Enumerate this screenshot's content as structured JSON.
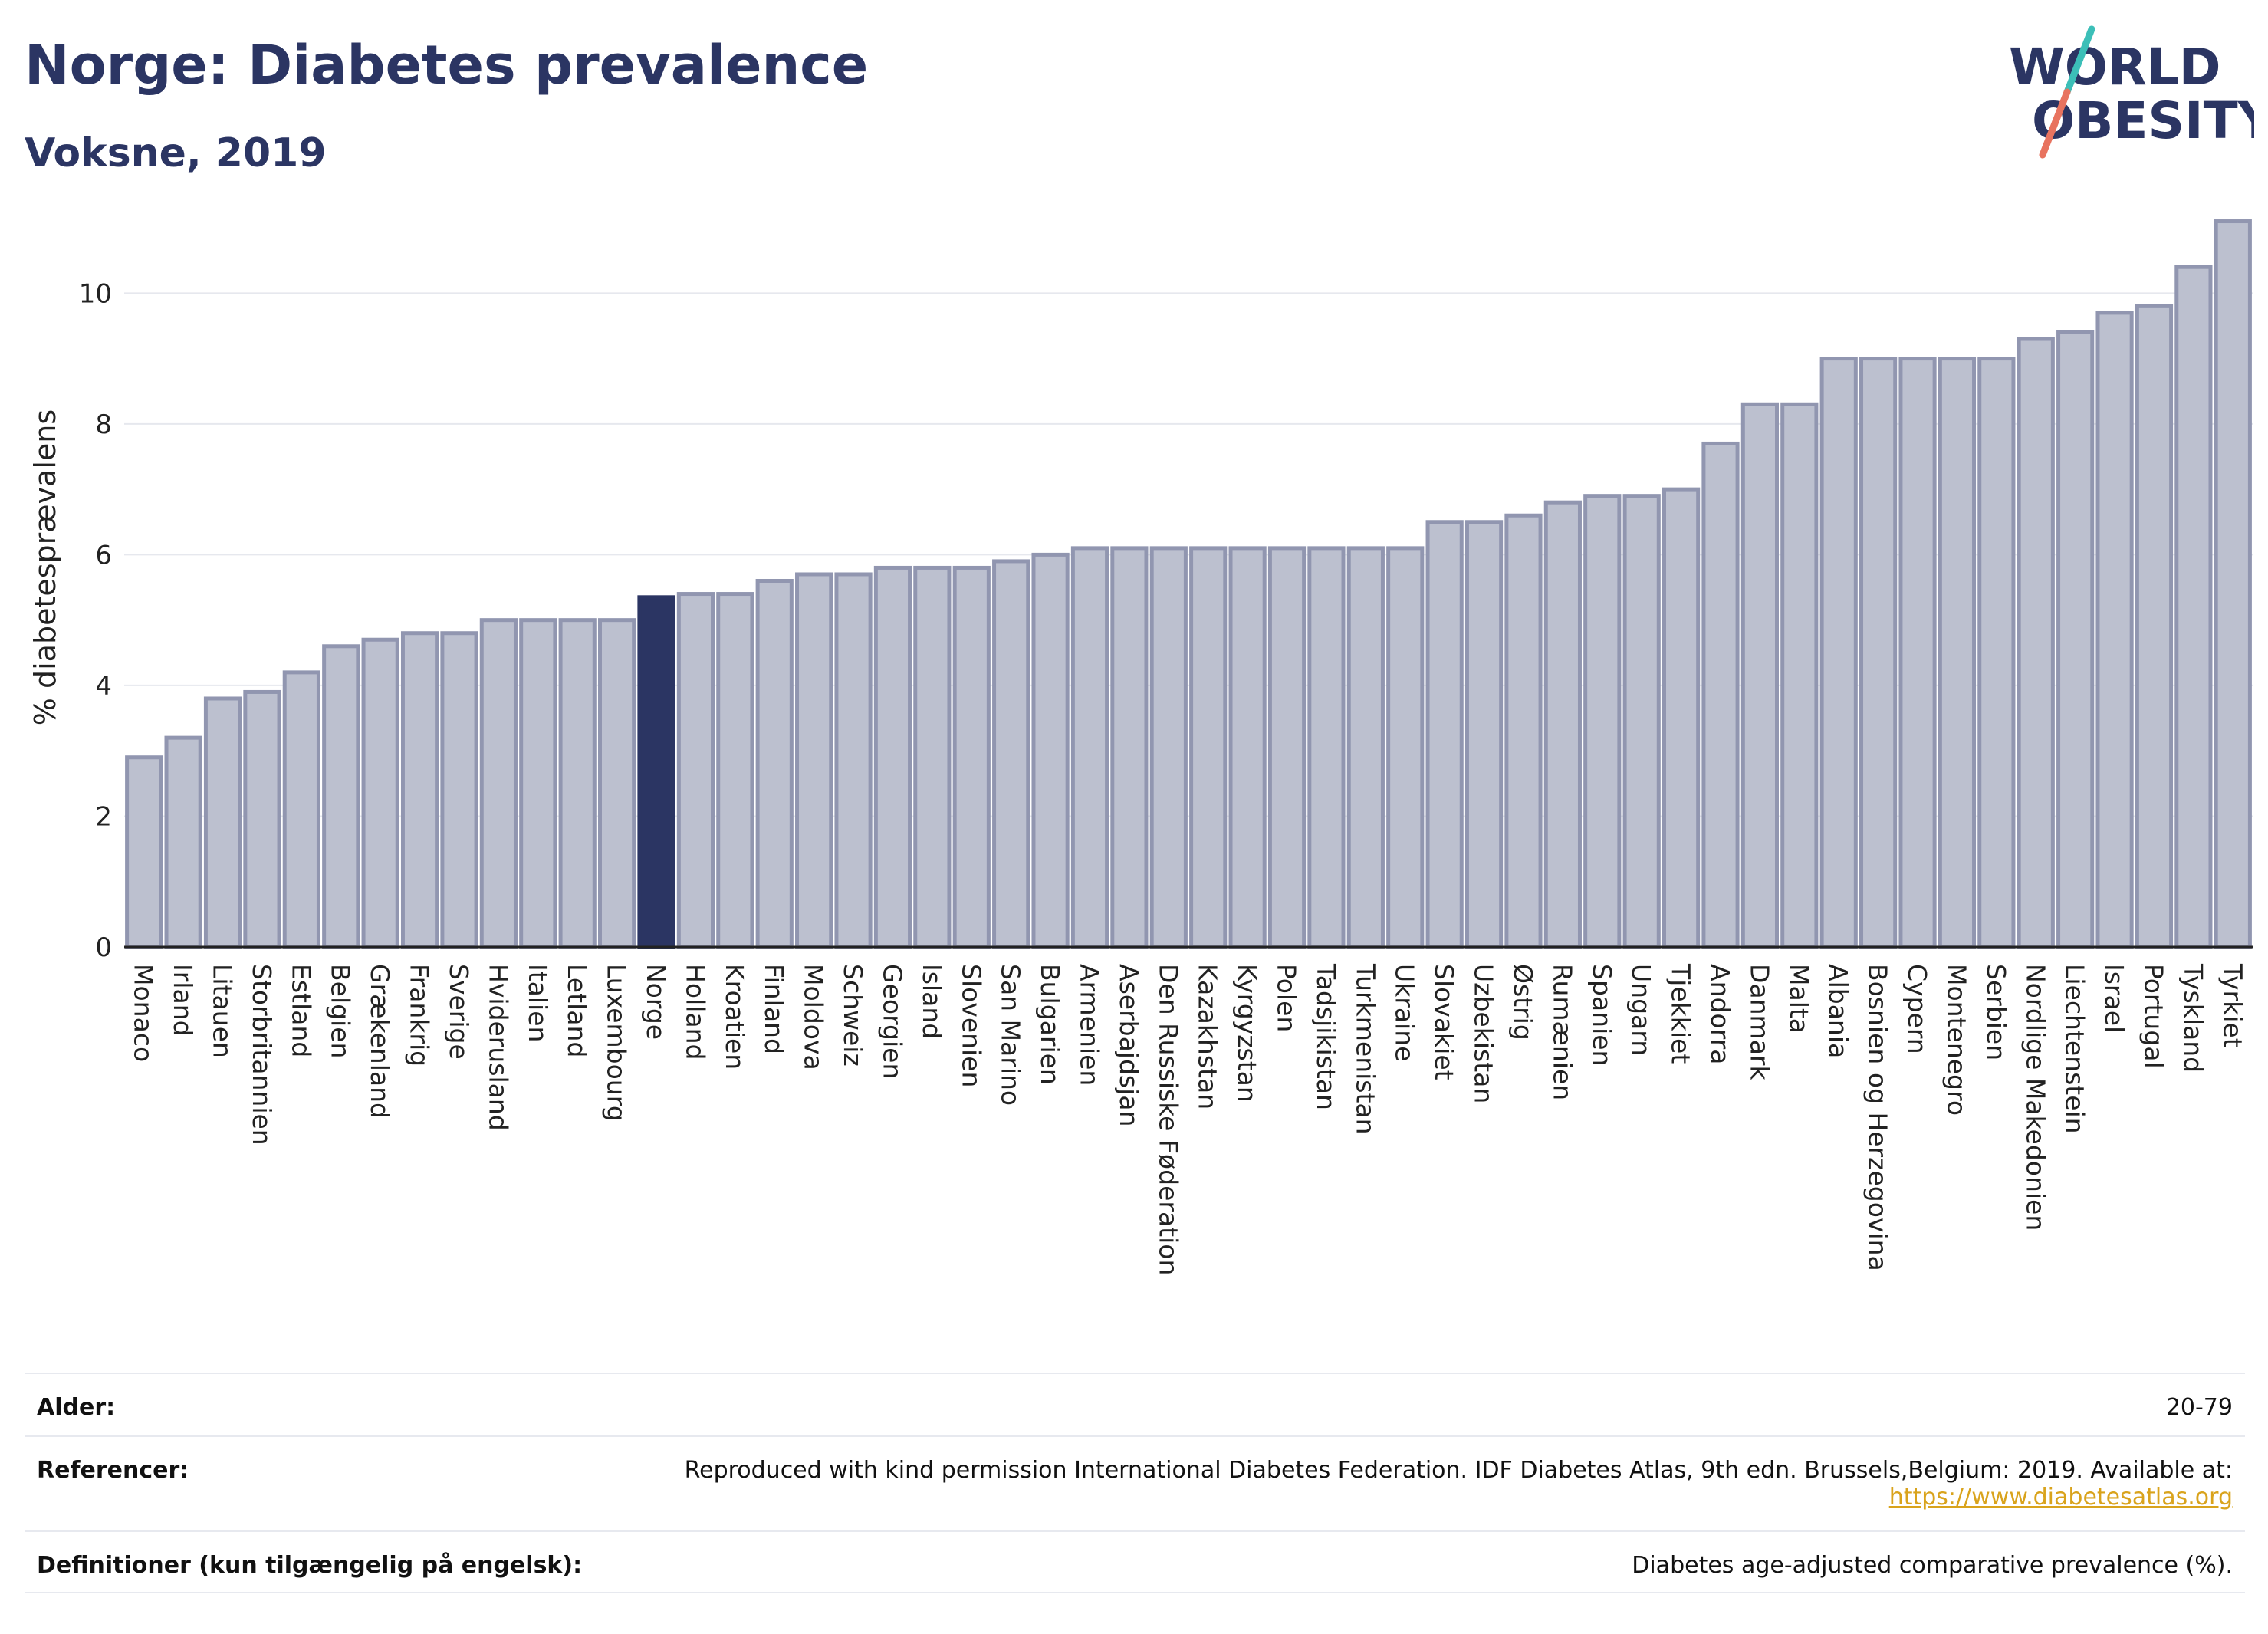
{
  "header": {
    "title": "Norge: Diabetes prevalence",
    "subtitle": "Voksne, 2019",
    "logo_line1": "WORLD",
    "logo_line2": "OBESITY"
  },
  "colors": {
    "bar": "#bcc0cf",
    "bar_stroke": "#9196b0",
    "highlight": "#2b3563",
    "logo_teal": "#3cbfb8",
    "logo_coral": "#e8735f"
  },
  "chart_data": {
    "type": "bar",
    "ylabel": "% diabetesprævalens",
    "ylim": [
      0,
      11.2
    ],
    "yticks": [
      0,
      2,
      4,
      6,
      8,
      10
    ],
    "grid": true,
    "highlight": "Norge",
    "categories": [
      "Monaco",
      "Irland",
      "Litauen",
      "Storbritannien",
      "Estland",
      "Belgien",
      "Grækenland",
      "Frankrig",
      "Sverige",
      "Hviderusland",
      "Italien",
      "Letland",
      "Luxembourg",
      "Norge",
      "Holland",
      "Kroatien",
      "Finland",
      "Moldova",
      "Schweiz",
      "Georgien",
      "Island",
      "Slovenien",
      "San Marino",
      "Bulgarien",
      "Armenien",
      "Aserbajdsjan",
      "Den Russiske Føderation",
      "Kazakhstan",
      "Kyrgyzstan",
      "Polen",
      "Tadsjikistan",
      "Turkmenistan",
      "Ukraine",
      "Slovakiet",
      "Uzbekistan",
      "Østrig",
      "Rumænien",
      "Spanien",
      "Ungarn",
      "Tjekkiet",
      "Andorra",
      "Danmark",
      "Malta",
      "Albania",
      "Bosnien og Herzegovina",
      "Cypern",
      "Montenegro",
      "Serbien",
      "Nordlige Makedonien",
      "Liechtenstein",
      "Israel",
      "Portugal",
      "Tyskland",
      "Tyrkiet"
    ],
    "values": [
      2.9,
      3.2,
      3.8,
      3.9,
      4.2,
      4.6,
      4.7,
      4.8,
      4.8,
      5.0,
      5.0,
      5.0,
      5.0,
      5.35,
      5.4,
      5.4,
      5.6,
      5.7,
      5.7,
      5.8,
      5.8,
      5.8,
      5.9,
      6.0,
      6.1,
      6.1,
      6.1,
      6.1,
      6.1,
      6.1,
      6.1,
      6.1,
      6.1,
      6.5,
      6.5,
      6.6,
      6.8,
      6.9,
      6.9,
      7.0,
      7.7,
      8.3,
      8.3,
      9.0,
      9.0,
      9.0,
      9.0,
      9.0,
      9.3,
      9.4,
      9.7,
      9.8,
      10.4,
      11.1
    ]
  },
  "footer": {
    "rows": [
      {
        "label": "Alder:",
        "value": "20-79"
      },
      {
        "label": "Referencer:",
        "value": "Reproduced with kind permission International Diabetes Federation. IDF Diabetes Atlas, 9th edn. Brussels,Belgium: 2019. Available at:",
        "link": "https://www.diabetesatlas.org"
      },
      {
        "label": "Definitioner (kun tilgængelig på engelsk):",
        "value": "Diabetes age-adjusted comparative prevalence (%)."
      }
    ]
  }
}
